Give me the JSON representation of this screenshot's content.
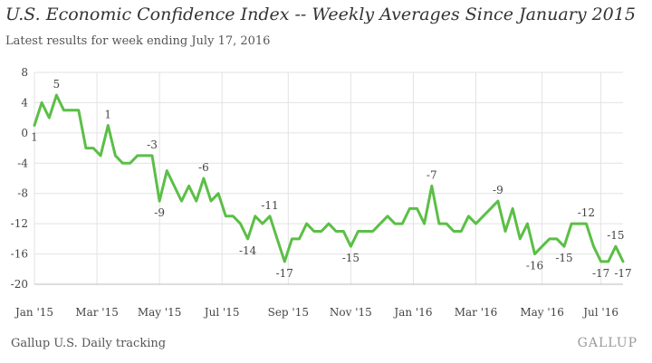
{
  "title": "U.S. Economic Confidence Index -- Weekly Averages Since January 2015",
  "subtitle": "Latest results for week ending July 17, 2016",
  "source": "Gallup U.S. Daily tracking",
  "brand": "GALLUP",
  "colors": {
    "line": "#5bbf46",
    "grid": "#e3e3e3",
    "axis": "#bdbdbd"
  },
  "chart_data": {
    "type": "line",
    "title": "U.S. Economic Confidence Index -- Weekly Averages Since January 2015",
    "subtitle": "Latest results for week ending July 17, 2016",
    "xlabel": "",
    "ylabel": "",
    "ylim": [
      -20,
      8
    ],
    "yticks": [
      "8",
      "4",
      "0",
      "-4",
      "-8",
      "-12",
      "-16",
      "-20"
    ],
    "ytick_values": [
      8,
      4,
      0,
      -4,
      -8,
      -12,
      -16,
      -20
    ],
    "grid": true,
    "xticks": [
      "Jan '15",
      "Mar '15",
      "May '15",
      "Jul '15",
      "Sep '15",
      "Nov '15",
      "Jan '16",
      "Mar '16",
      "May '16",
      "Jul '16"
    ],
    "xtick_weeks": [
      0,
      8.5,
      17,
      25.5,
      34.5,
      43,
      51.5,
      60,
      69,
      77
    ],
    "series": [
      {
        "values": [
          1,
          4,
          2,
          5,
          3,
          3,
          3,
          -2,
          -2,
          -3,
          1,
          -3,
          -4,
          -4,
          -3,
          -3,
          -3,
          -9,
          -5,
          -7,
          -9,
          -7,
          -9,
          -6,
          -9,
          -8,
          -11,
          -11,
          -12,
          -14,
          -11,
          -12,
          -11,
          -14,
          -17,
          -14,
          -14,
          -12,
          -13,
          -13,
          -12,
          -13,
          -13,
          -15,
          -13,
          -13,
          -13,
          -12,
          -11,
          -12,
          -12,
          -10,
          -10,
          -12,
          -7,
          -12,
          -12,
          -13,
          -13,
          -11,
          -12,
          -11,
          -10,
          -9,
          -13,
          -10,
          -14,
          -12,
          -16,
          -15,
          -14,
          -14,
          -15,
          -12,
          -12,
          -12,
          -15,
          -17,
          -17,
          -15,
          -17
        ]
      }
    ],
    "point_labels": [
      {
        "week": 0,
        "text": "1",
        "pos": "below"
      },
      {
        "week": 3,
        "text": "5",
        "pos": "above"
      },
      {
        "week": 10,
        "text": "1",
        "pos": "above"
      },
      {
        "week": 16,
        "text": "-3",
        "pos": "above"
      },
      {
        "week": 17,
        "text": "-9",
        "pos": "below"
      },
      {
        "week": 23,
        "text": "-6",
        "pos": "above"
      },
      {
        "week": 29,
        "text": "-14",
        "pos": "below"
      },
      {
        "week": 32,
        "text": "-11",
        "pos": "above"
      },
      {
        "week": 34,
        "text": "-17",
        "pos": "below"
      },
      {
        "week": 43,
        "text": "-15",
        "pos": "below"
      },
      {
        "week": 54,
        "text": "-7",
        "pos": "above"
      },
      {
        "week": 63,
        "text": "-9",
        "pos": "above"
      },
      {
        "week": 68,
        "text": "-16",
        "pos": "below"
      },
      {
        "week": 72,
        "text": "-15",
        "pos": "below"
      },
      {
        "week": 75,
        "text": "-12",
        "pos": "above"
      },
      {
        "week": 77,
        "text": "-17",
        "pos": "below"
      },
      {
        "week": 79,
        "text": "-15",
        "pos": "above"
      },
      {
        "week": 80,
        "text": "-17",
        "pos": "below"
      }
    ]
  }
}
